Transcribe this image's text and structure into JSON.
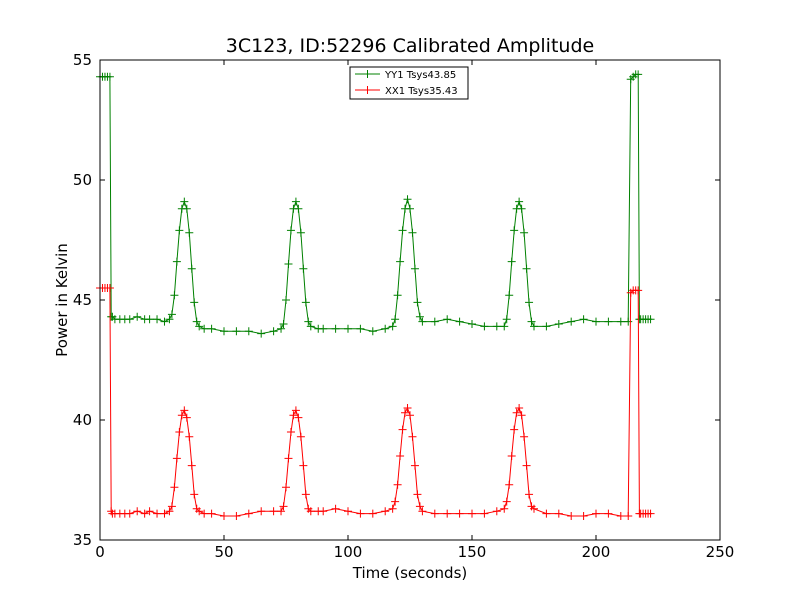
{
  "chart_data": {
    "type": "line",
    "title": "3C123, ID:52296 Calibrated Amplitude",
    "xlabel": "Time (seconds)",
    "ylabel": "Power in Kelvin",
    "xlim": [
      0,
      250
    ],
    "ylim": [
      35,
      55
    ],
    "xticks": [
      0,
      50,
      100,
      150,
      200,
      250
    ],
    "yticks": [
      35,
      40,
      45,
      50,
      55
    ],
    "grid": false,
    "legend_position": "top-center",
    "marker": "+",
    "series": [
      {
        "name": "YY1 Tsys43.85",
        "color": "#008000",
        "points": [
          [
            0,
            54.3
          ],
          [
            1,
            54.3
          ],
          [
            2,
            54.3
          ],
          [
            3,
            54.3
          ],
          [
            4,
            54.3
          ],
          [
            4.5,
            44.3
          ],
          [
            5,
            44.3
          ],
          [
            6,
            44.2
          ],
          [
            8,
            44.2
          ],
          [
            10,
            44.2
          ],
          [
            12,
            44.2
          ],
          [
            15,
            44.3
          ],
          [
            18,
            44.2
          ],
          [
            20,
            44.2
          ],
          [
            23,
            44.2
          ],
          [
            26,
            44.1
          ],
          [
            28,
            44.2
          ],
          [
            29,
            44.4
          ],
          [
            30,
            45.2
          ],
          [
            31,
            46.6
          ],
          [
            32,
            47.9
          ],
          [
            33,
            48.8
          ],
          [
            34,
            49.1
          ],
          [
            35,
            48.8
          ],
          [
            36,
            47.8
          ],
          [
            37,
            46.3
          ],
          [
            38,
            44.9
          ],
          [
            39,
            44.1
          ],
          [
            40,
            43.9
          ],
          [
            42,
            43.8
          ],
          [
            45,
            43.8
          ],
          [
            50,
            43.7
          ],
          [
            55,
            43.7
          ],
          [
            60,
            43.7
          ],
          [
            65,
            43.6
          ],
          [
            70,
            43.7
          ],
          [
            73,
            43.8
          ],
          [
            74,
            44.0
          ],
          [
            75,
            45.0
          ],
          [
            76,
            46.5
          ],
          [
            77,
            47.9
          ],
          [
            78,
            48.8
          ],
          [
            79,
            49.1
          ],
          [
            80,
            48.8
          ],
          [
            81,
            47.8
          ],
          [
            82,
            46.3
          ],
          [
            83,
            44.9
          ],
          [
            84,
            44.1
          ],
          [
            85,
            43.9
          ],
          [
            88,
            43.8
          ],
          [
            90,
            43.8
          ],
          [
            95,
            43.8
          ],
          [
            100,
            43.8
          ],
          [
            105,
            43.8
          ],
          [
            110,
            43.7
          ],
          [
            115,
            43.8
          ],
          [
            118,
            43.9
          ],
          [
            119,
            44.2
          ],
          [
            120,
            45.2
          ],
          [
            121,
            46.6
          ],
          [
            122,
            47.9
          ],
          [
            123,
            48.8
          ],
          [
            124,
            49.2
          ],
          [
            125,
            48.8
          ],
          [
            126,
            47.8
          ],
          [
            127,
            46.3
          ],
          [
            128,
            44.9
          ],
          [
            129,
            44.3
          ],
          [
            130,
            44.1
          ],
          [
            135,
            44.1
          ],
          [
            140,
            44.2
          ],
          [
            145,
            44.1
          ],
          [
            150,
            44.0
          ],
          [
            155,
            43.9
          ],
          [
            160,
            43.9
          ],
          [
            163,
            43.9
          ],
          [
            164,
            44.2
          ],
          [
            165,
            45.2
          ],
          [
            166,
            46.6
          ],
          [
            167,
            47.9
          ],
          [
            168,
            48.8
          ],
          [
            169,
            49.1
          ],
          [
            170,
            48.8
          ],
          [
            171,
            47.8
          ],
          [
            172,
            46.3
          ],
          [
            173,
            44.9
          ],
          [
            174,
            44.1
          ],
          [
            175,
            43.9
          ],
          [
            180,
            43.9
          ],
          [
            185,
            44.0
          ],
          [
            190,
            44.1
          ],
          [
            195,
            44.2
          ],
          [
            200,
            44.1
          ],
          [
            205,
            44.1
          ],
          [
            210,
            44.1
          ],
          [
            213,
            44.1
          ],
          [
            214,
            54.2
          ],
          [
            215,
            54.3
          ],
          [
            216,
            54.4
          ],
          [
            217,
            54.4
          ],
          [
            217.5,
            44.2
          ],
          [
            218,
            44.2
          ],
          [
            219,
            44.2
          ],
          [
            220,
            44.2
          ],
          [
            221,
            44.2
          ],
          [
            222,
            44.2
          ]
        ]
      },
      {
        "name": "XX1 Tsys35.43",
        "color": "#ff0000",
        "points": [
          [
            0,
            45.5
          ],
          [
            1,
            45.5
          ],
          [
            2,
            45.5
          ],
          [
            3,
            45.5
          ],
          [
            4,
            45.5
          ],
          [
            4.5,
            36.2
          ],
          [
            5,
            36.1
          ],
          [
            6,
            36.1
          ],
          [
            8,
            36.1
          ],
          [
            10,
            36.1
          ],
          [
            12,
            36.1
          ],
          [
            15,
            36.2
          ],
          [
            18,
            36.1
          ],
          [
            20,
            36.2
          ],
          [
            23,
            36.1
          ],
          [
            26,
            36.1
          ],
          [
            28,
            36.2
          ],
          [
            29,
            36.4
          ],
          [
            30,
            37.2
          ],
          [
            31,
            38.4
          ],
          [
            32,
            39.5
          ],
          [
            33,
            40.2
          ],
          [
            34,
            40.4
          ],
          [
            35,
            40.1
          ],
          [
            36,
            39.3
          ],
          [
            37,
            38.1
          ],
          [
            38,
            36.9
          ],
          [
            39,
            36.3
          ],
          [
            40,
            36.2
          ],
          [
            42,
            36.1
          ],
          [
            45,
            36.1
          ],
          [
            50,
            36.0
          ],
          [
            55,
            36.0
          ],
          [
            60,
            36.1
          ],
          [
            65,
            36.2
          ],
          [
            70,
            36.2
          ],
          [
            73,
            36.2
          ],
          [
            74,
            36.4
          ],
          [
            75,
            37.2
          ],
          [
            76,
            38.4
          ],
          [
            77,
            39.5
          ],
          [
            78,
            40.2
          ],
          [
            79,
            40.4
          ],
          [
            80,
            40.1
          ],
          [
            81,
            39.3
          ],
          [
            82,
            38.1
          ],
          [
            83,
            36.9
          ],
          [
            84,
            36.3
          ],
          [
            85,
            36.2
          ],
          [
            88,
            36.2
          ],
          [
            90,
            36.2
          ],
          [
            95,
            36.3
          ],
          [
            100,
            36.2
          ],
          [
            105,
            36.1
          ],
          [
            110,
            36.1
          ],
          [
            115,
            36.2
          ],
          [
            118,
            36.3
          ],
          [
            119,
            36.6
          ],
          [
            120,
            37.3
          ],
          [
            121,
            38.5
          ],
          [
            122,
            39.6
          ],
          [
            123,
            40.3
          ],
          [
            124,
            40.5
          ],
          [
            125,
            40.2
          ],
          [
            126,
            39.3
          ],
          [
            127,
            38.1
          ],
          [
            128,
            36.9
          ],
          [
            129,
            36.4
          ],
          [
            130,
            36.2
          ],
          [
            135,
            36.1
          ],
          [
            140,
            36.1
          ],
          [
            145,
            36.1
          ],
          [
            150,
            36.1
          ],
          [
            155,
            36.1
          ],
          [
            160,
            36.2
          ],
          [
            163,
            36.3
          ],
          [
            164,
            36.6
          ],
          [
            165,
            37.3
          ],
          [
            166,
            38.5
          ],
          [
            167,
            39.6
          ],
          [
            168,
            40.3
          ],
          [
            169,
            40.5
          ],
          [
            170,
            40.2
          ],
          [
            171,
            39.3
          ],
          [
            172,
            38.1
          ],
          [
            173,
            36.9
          ],
          [
            174,
            36.4
          ],
          [
            175,
            36.3
          ],
          [
            180,
            36.1
          ],
          [
            185,
            36.1
          ],
          [
            190,
            36.0
          ],
          [
            195,
            36.0
          ],
          [
            200,
            36.1
          ],
          [
            205,
            36.1
          ],
          [
            210,
            36.0
          ],
          [
            213,
            36.0
          ],
          [
            214,
            45.3
          ],
          [
            215,
            45.4
          ],
          [
            216,
            45.4
          ],
          [
            217,
            45.4
          ],
          [
            217.5,
            36.1
          ],
          [
            218,
            36.1
          ],
          [
            219,
            36.1
          ],
          [
            220,
            36.1
          ],
          [
            221,
            36.1
          ],
          [
            222,
            36.1
          ]
        ]
      }
    ]
  }
}
